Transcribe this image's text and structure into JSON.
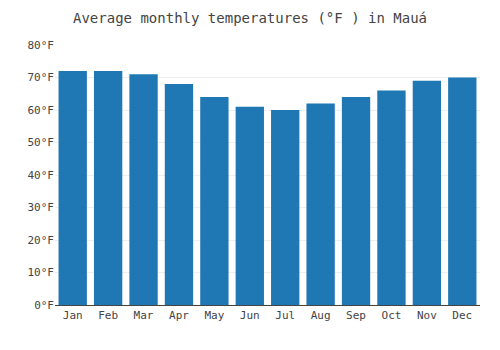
{
  "chart_data": {
    "type": "bar",
    "title": "Average monthly temperatures (°F ) in Mauá",
    "categories": [
      "Jan",
      "Feb",
      "Mar",
      "Apr",
      "May",
      "Jun",
      "Jul",
      "Aug",
      "Sep",
      "Oct",
      "Nov",
      "Dec"
    ],
    "values": [
      72,
      72,
      71,
      68,
      64,
      61,
      60,
      62,
      64,
      66,
      69,
      70
    ],
    "ylim": [
      0,
      80
    ],
    "yticks": [
      {
        "value": 0,
        "label": "0°F"
      },
      {
        "value": 10,
        "label": "10°F"
      },
      {
        "value": 20,
        "label": "20°F"
      },
      {
        "value": 30,
        "label": "30°F"
      },
      {
        "value": 40,
        "label": "40°F"
      },
      {
        "value": 50,
        "label": "50°F"
      },
      {
        "value": 60,
        "label": "60°F"
      },
      {
        "value": 70,
        "label": "70°F"
      },
      {
        "value": 80,
        "label": "80°F"
      }
    ],
    "grid": true
  }
}
